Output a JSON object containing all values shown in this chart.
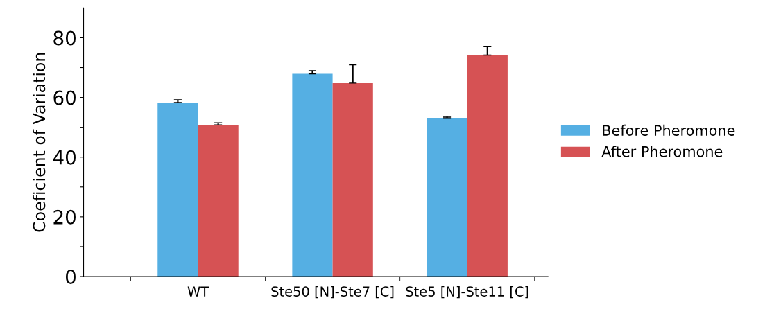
{
  "chart_data": {
    "type": "bar",
    "ylabel": "Coeficient of Variation",
    "categories": [
      "WT",
      "Ste50 [N]-Ste7 [C]",
      "Ste5 [N]-Ste11 [C]"
    ],
    "series": [
      {
        "name": "Before Pheromone",
        "color": "#55afe3",
        "values": [
          58.3,
          67.9,
          53.2
        ],
        "errors": [
          [
            58.3,
            59.2
          ],
          [
            67.9,
            69.0
          ],
          [
            53.2,
            53.6
          ]
        ]
      },
      {
        "name": "After Pheromone",
        "color": "#d65254",
        "values": [
          50.8,
          64.8,
          74.2
        ],
        "errors": [
          [
            50.8,
            51.5
          ],
          [
            64.8,
            70.9
          ],
          [
            74.2,
            77.0
          ]
        ]
      }
    ],
    "ylim": [
      0,
      90
    ],
    "yticks": [
      0,
      {
        "value": 10,
        "label": null
      },
      20,
      {
        "value": 30,
        "label": null
      },
      40,
      {
        "value": 50,
        "label": null
      },
      60,
      {
        "value": 70,
        "label": null
      },
      80
    ],
    "grid": false,
    "legend": "right"
  }
}
